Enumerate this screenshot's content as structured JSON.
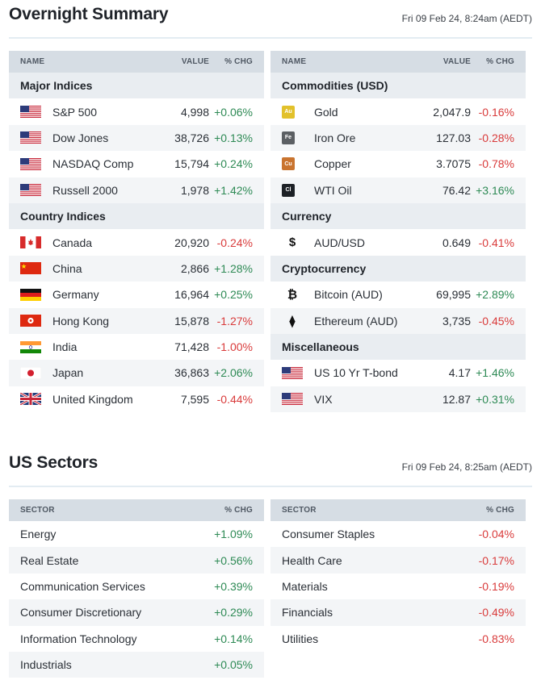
{
  "overnight": {
    "title": "Overnight Summary",
    "timestamp": "Fri 09 Feb 24, 8:24am (AEDT)",
    "headers": {
      "name": "NAME",
      "value": "VALUE",
      "chg": "% CHG"
    },
    "left": [
      {
        "category": "Major Indices",
        "rows": [
          {
            "icon": "us-flag-icon",
            "name": "S&P 500",
            "value": "4,998",
            "chg": "+0.06%",
            "dir": "up"
          },
          {
            "icon": "us-flag-icon",
            "name": "Dow Jones",
            "value": "38,726",
            "chg": "+0.13%",
            "dir": "up"
          },
          {
            "icon": "us-flag-icon",
            "name": "NASDAQ Comp",
            "value": "15,794",
            "chg": "+0.24%",
            "dir": "up"
          },
          {
            "icon": "us-flag-icon",
            "name": "Russell 2000",
            "value": "1,978",
            "chg": "+1.42%",
            "dir": "up"
          }
        ]
      },
      {
        "category": "Country Indices",
        "rows": [
          {
            "icon": "canada-flag-icon",
            "name": "Canada",
            "value": "20,920",
            "chg": "-0.24%",
            "dir": "down"
          },
          {
            "icon": "china-flag-icon",
            "name": "China",
            "value": "2,866",
            "chg": "+1.28%",
            "dir": "up"
          },
          {
            "icon": "germany-flag-icon",
            "name": "Germany",
            "value": "16,964",
            "chg": "+0.25%",
            "dir": "up"
          },
          {
            "icon": "hong-kong-flag-icon",
            "name": "Hong Kong",
            "value": "15,878",
            "chg": "-1.27%",
            "dir": "down"
          },
          {
            "icon": "india-flag-icon",
            "name": "India",
            "value": "71,428",
            "chg": "-1.00%",
            "dir": "down"
          },
          {
            "icon": "japan-flag-icon",
            "name": "Japan",
            "value": "36,863",
            "chg": "+2.06%",
            "dir": "up"
          },
          {
            "icon": "uk-flag-icon",
            "name": "United Kingdom",
            "value": "7,595",
            "chg": "-0.44%",
            "dir": "down"
          }
        ]
      }
    ],
    "right": [
      {
        "category": "Commodities (USD)",
        "rows": [
          {
            "icon": "gold-badge-icon",
            "badge": "Au",
            "color": "#e2c12b",
            "name": "Gold",
            "value": "2,047.9",
            "chg": "-0.16%",
            "dir": "down"
          },
          {
            "icon": "iron-ore-badge-icon",
            "badge": "Fe",
            "color": "#5b5f63",
            "name": "Iron Ore",
            "value": "127.03",
            "chg": "-0.28%",
            "dir": "down"
          },
          {
            "icon": "copper-badge-icon",
            "badge": "Cu",
            "color": "#c9742f",
            "name": "Copper",
            "value": "3.7075",
            "chg": "-0.78%",
            "dir": "down"
          },
          {
            "icon": "oil-badge-icon",
            "badge": "Cl",
            "color": "#1d2126",
            "name": "WTI Oil",
            "value": "76.42",
            "chg": "+3.16%",
            "dir": "up"
          }
        ]
      },
      {
        "category": "Currency",
        "rows": [
          {
            "icon": "dollar-icon",
            "glyph": "$",
            "name": "AUD/USD",
            "value": "0.649",
            "chg": "-0.41%",
            "dir": "down"
          }
        ]
      },
      {
        "category": "Cryptocurrency",
        "rows": [
          {
            "icon": "bitcoin-icon",
            "glyph": "₿",
            "name": "Bitcoin (AUD)",
            "value": "69,995",
            "chg": "+2.89%",
            "dir": "up"
          },
          {
            "icon": "ethereum-icon",
            "glyph": "⧫",
            "name": "Ethereum (AUD)",
            "value": "3,735",
            "chg": "-0.45%",
            "dir": "down"
          }
        ]
      },
      {
        "category": "Miscellaneous",
        "rows": [
          {
            "icon": "us-flag-icon",
            "name": "US 10 Yr T-bond",
            "value": "4.17",
            "chg": "+1.46%",
            "dir": "up"
          },
          {
            "icon": "us-flag-icon",
            "name": "VIX",
            "value": "12.87",
            "chg": "+0.31%",
            "dir": "up"
          }
        ]
      }
    ]
  },
  "sectors": {
    "title": "US Sectors",
    "timestamp": "Fri 09 Feb 24, 8:25am (AEDT)",
    "headers": {
      "name": "SECTOR",
      "chg": "% CHG"
    },
    "left": [
      {
        "name": "Energy",
        "chg": "+1.09%",
        "dir": "up"
      },
      {
        "name": "Real Estate",
        "chg": "+0.56%",
        "dir": "up"
      },
      {
        "name": "Communication Services",
        "chg": "+0.39%",
        "dir": "up"
      },
      {
        "name": "Consumer Discretionary",
        "chg": "+0.29%",
        "dir": "up"
      },
      {
        "name": "Information Technology",
        "chg": "+0.14%",
        "dir": "up"
      },
      {
        "name": "Industrials",
        "chg": "+0.05%",
        "dir": "up"
      }
    ],
    "right": [
      {
        "name": "Consumer Staples",
        "chg": "-0.04%",
        "dir": "down"
      },
      {
        "name": "Health Care",
        "chg": "-0.17%",
        "dir": "down"
      },
      {
        "name": "Materials",
        "chg": "-0.19%",
        "dir": "down"
      },
      {
        "name": "Financials",
        "chg": "-0.49%",
        "dir": "down"
      },
      {
        "name": "Utilities",
        "chg": "-0.83%",
        "dir": "down"
      }
    ]
  },
  "colors": {
    "up": "#2e8a55",
    "down": "#d93b3b",
    "header_bg": "#d6dde4",
    "row_alt": "#f3f5f7"
  }
}
